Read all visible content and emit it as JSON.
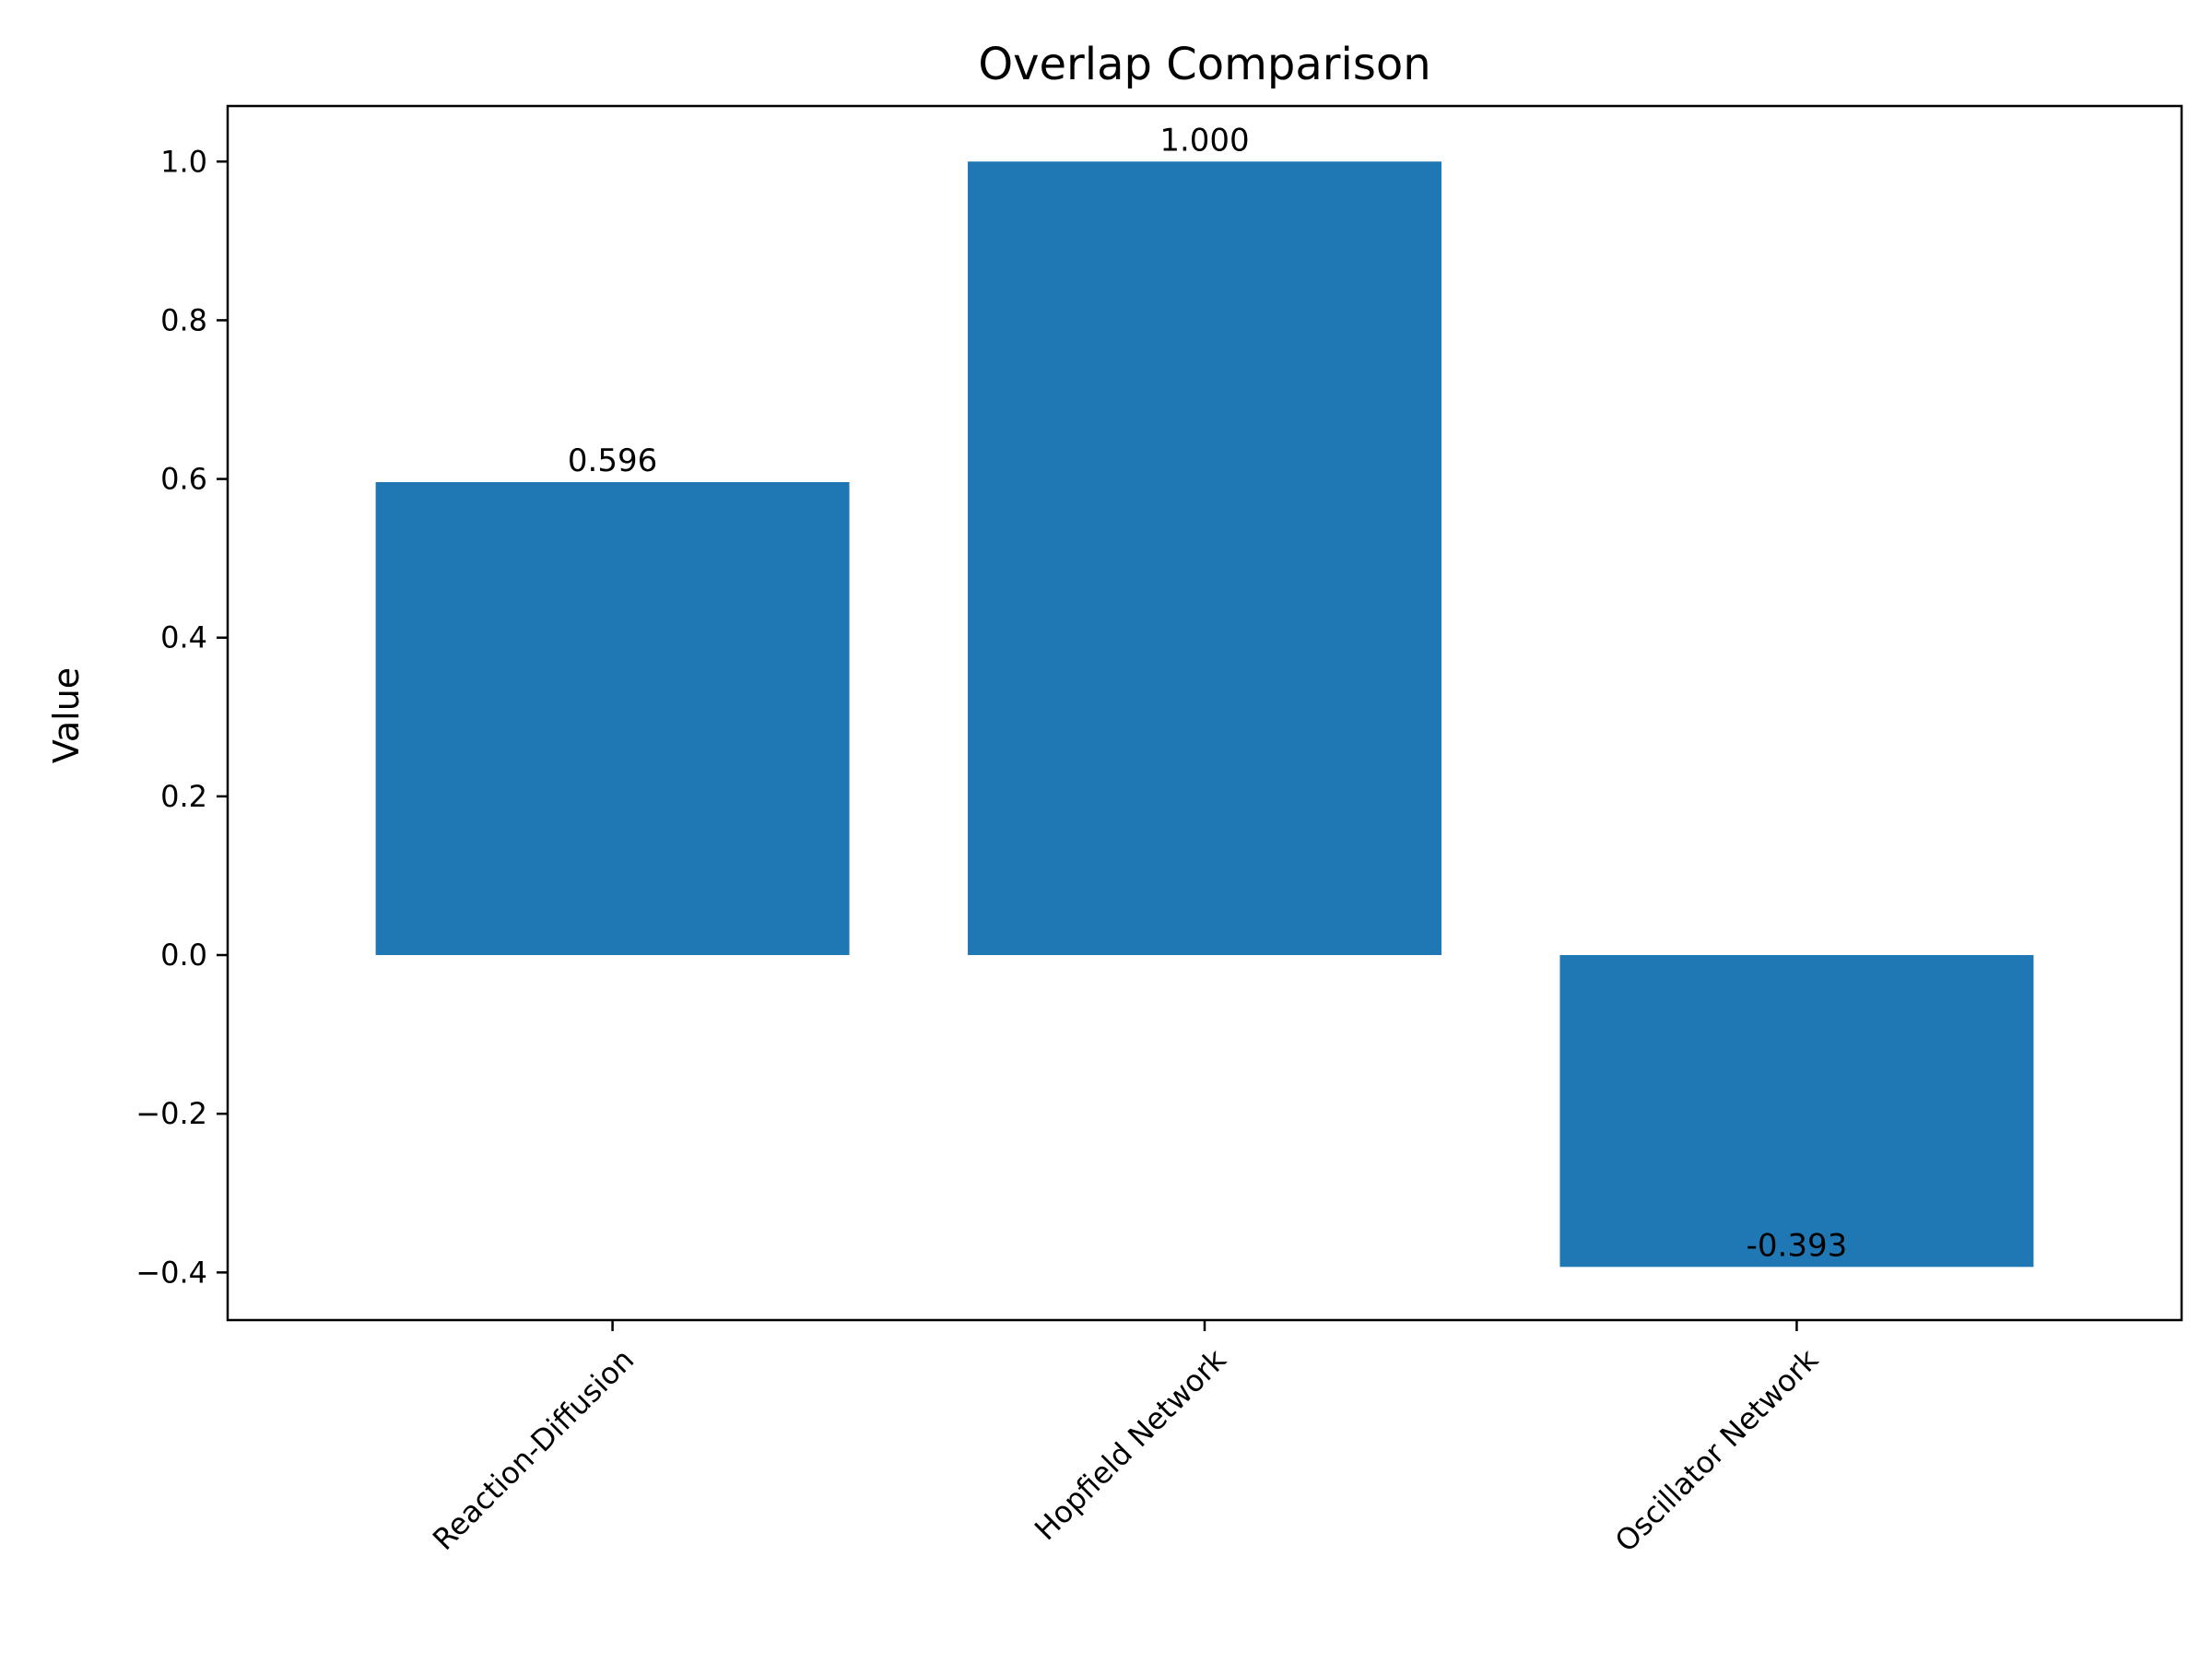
{
  "chart_data": {
    "type": "bar",
    "title": "Overlap Comparison",
    "xlabel": "",
    "ylabel": "Value",
    "categories": [
      "Reaction-Diffusion",
      "Hopfield Network",
      "Oscillator Network"
    ],
    "values": [
      0.596,
      1.0,
      -0.393
    ],
    "value_labels": [
      "0.596",
      "1.000",
      "-0.393"
    ],
    "ylim": [
      -0.46,
      1.07
    ],
    "yticks": [
      -0.4,
      -0.2,
      0.0,
      0.2,
      0.4,
      0.6,
      0.8,
      1.0
    ],
    "ytick_labels": [
      "−0.4",
      "−0.2",
      "0.0",
      "0.2",
      "0.4",
      "0.6",
      "0.8",
      "1.0"
    ],
    "bar_color": "#1f77b4",
    "grid": false,
    "legend": "none"
  }
}
